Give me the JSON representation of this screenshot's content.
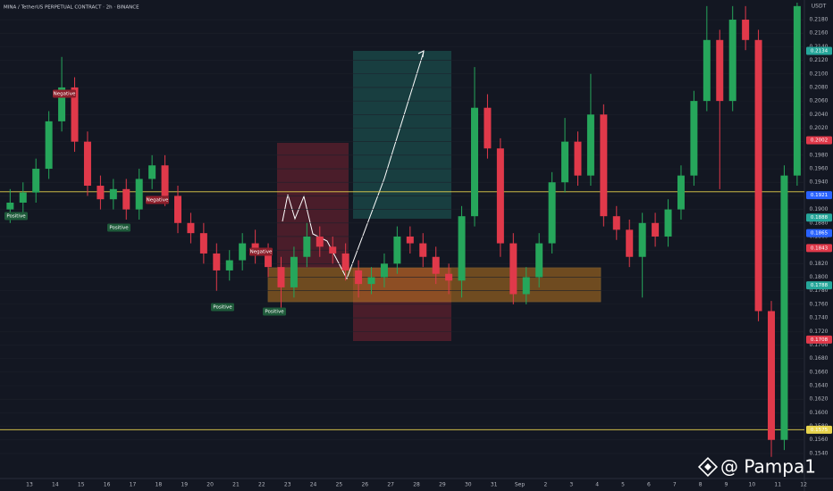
{
  "chart_data": {
    "type": "candlestick",
    "title": "MINA / TetherUS PERPETUAL CONTRACT · 2h · BINANCE",
    "currency": "USDT",
    "watermark": "@ Pampa1",
    "categories": [
      "13",
      "14",
      "15",
      "16",
      "17",
      "18",
      "19",
      "20",
      "21",
      "22",
      "23",
      "24",
      "25",
      "26",
      "27",
      "28",
      "29",
      "30",
      "31",
      "Sep",
      "2",
      "3",
      "4",
      "5",
      "6",
      "7",
      "8",
      "9",
      "10",
      "11",
      "12"
    ],
    "up_color": "#26a65b",
    "down_color": "#e0394a",
    "open": [
      0.19,
      0.191,
      0.1925,
      0.196,
      0.203,
      0.208,
      0.2,
      0.1935,
      0.1915,
      0.193,
      0.19,
      0.1945,
      0.1965,
      0.192,
      0.188,
      0.1865,
      0.1835,
      0.181,
      0.1825,
      0.185,
      0.1835,
      0.1815,
      0.1785,
      0.183,
      0.186,
      0.1845,
      0.1835,
      0.181,
      0.179,
      0.18,
      0.182,
      0.186,
      0.185,
      0.183,
      0.1805,
      0.1795,
      0.189,
      0.205,
      0.199,
      0.185,
      0.1775,
      0.18,
      0.185,
      0.194,
      0.2,
      0.195,
      0.204,
      0.189,
      0.187,
      0.183,
      0.188,
      0.186,
      0.19,
      0.195,
      0.206,
      0.215,
      0.206,
      0.218,
      0.215,
      0.175,
      0.156,
      0.195
    ],
    "high": [
      0.193,
      0.194,
      0.1975,
      0.2045,
      0.2125,
      0.2095,
      0.2015,
      0.195,
      0.1945,
      0.1945,
      0.196,
      0.198,
      0.198,
      0.1935,
      0.1895,
      0.188,
      0.185,
      0.184,
      0.1865,
      0.187,
      0.185,
      0.183,
      0.1845,
      0.188,
      0.1875,
      0.186,
      0.185,
      0.1825,
      0.1815,
      0.1835,
      0.1875,
      0.1875,
      0.1865,
      0.1845,
      0.182,
      0.1905,
      0.211,
      0.207,
      0.2005,
      0.1865,
      0.1815,
      0.1865,
      0.1955,
      0.2035,
      0.2015,
      0.21,
      0.2055,
      0.1905,
      0.1885,
      0.1895,
      0.1895,
      0.1915,
      0.1965,
      0.2075,
      0.22,
      0.2165,
      0.22,
      0.22,
      0.2165,
      0.1765,
      0.1965,
      0.2205
    ],
    "low": [
      0.188,
      0.1895,
      0.191,
      0.1945,
      0.2015,
      0.1985,
      0.192,
      0.19,
      0.19,
      0.1885,
      0.1885,
      0.193,
      0.1905,
      0.1865,
      0.185,
      0.182,
      0.178,
      0.1795,
      0.181,
      0.182,
      0.18,
      0.175,
      0.177,
      0.1815,
      0.183,
      0.182,
      0.1795,
      0.177,
      0.1775,
      0.1785,
      0.1805,
      0.1835,
      0.1815,
      0.179,
      0.1775,
      0.177,
      0.1875,
      0.1975,
      0.183,
      0.176,
      0.176,
      0.1785,
      0.1835,
      0.1925,
      0.1935,
      0.1935,
      0.1875,
      0.1855,
      0.1815,
      0.177,
      0.1845,
      0.1845,
      0.1885,
      0.1935,
      0.2045,
      0.193,
      0.2045,
      0.2135,
      0.1735,
      0.1535,
      0.1545,
      0.1935
    ],
    "close": [
      0.191,
      0.1925,
      0.196,
      0.203,
      0.208,
      0.2,
      0.1935,
      0.1915,
      0.193,
      0.19,
      0.1945,
      0.1965,
      0.192,
      0.188,
      0.1865,
      0.1835,
      0.181,
      0.1825,
      0.185,
      0.1835,
      0.1815,
      0.1785,
      0.183,
      0.186,
      0.1845,
      0.1835,
      0.181,
      0.179,
      0.18,
      0.182,
      0.186,
      0.185,
      0.183,
      0.1805,
      0.1795,
      0.189,
      0.205,
      0.199,
      0.185,
      0.1775,
      0.18,
      0.185,
      0.194,
      0.2,
      0.195,
      0.204,
      0.189,
      0.187,
      0.183,
      0.188,
      0.186,
      0.19,
      0.195,
      0.206,
      0.215,
      0.206,
      0.218,
      0.215,
      0.175,
      0.156,
      0.195,
      0.22
    ],
    "ylim": [
      0.1503,
      0.2209
    ],
    "yticks": [
      {
        "value": 0.218,
        "label": "0.2180"
      },
      {
        "value": 0.216,
        "label": "0.2160"
      },
      {
        "value": 0.214,
        "label": "0.2140"
      },
      {
        "value": 0.212,
        "label": "0.2120"
      },
      {
        "value": 0.21,
        "label": "0.2100"
      },
      {
        "value": 0.208,
        "label": "0.2080"
      },
      {
        "value": 0.206,
        "label": "0.2060"
      },
      {
        "value": 0.204,
        "label": "0.2040"
      },
      {
        "value": 0.202,
        "label": "0.2020"
      },
      {
        "value": 0.2,
        "label": "0.2000"
      },
      {
        "value": 0.198,
        "label": "0.1980"
      },
      {
        "value": 0.196,
        "label": "0.1960"
      },
      {
        "value": 0.194,
        "label": "0.1940"
      },
      {
        "value": 0.192,
        "label": "0.1920"
      },
      {
        "value": 0.19,
        "label": "0.1900"
      },
      {
        "value": 0.188,
        "label": "0.1880"
      },
      {
        "value": 0.186,
        "label": "0.1860"
      },
      {
        "value": 0.184,
        "label": "0.1840"
      },
      {
        "value": 0.182,
        "label": "0.1820"
      },
      {
        "value": 0.18,
        "label": "0.1800"
      },
      {
        "value": 0.178,
        "label": "0.1780"
      },
      {
        "value": 0.176,
        "label": "0.1760"
      },
      {
        "value": 0.174,
        "label": "0.1740"
      },
      {
        "value": 0.172,
        "label": "0.1720"
      },
      {
        "value": 0.17,
        "label": "0.1700"
      },
      {
        "value": 0.168,
        "label": "0.1680"
      },
      {
        "value": 0.166,
        "label": "0.1660"
      },
      {
        "value": 0.164,
        "label": "0.1640"
      },
      {
        "value": 0.162,
        "label": "0.1620"
      },
      {
        "value": 0.16,
        "label": "0.1600"
      },
      {
        "value": 0.158,
        "label": "0.1580"
      },
      {
        "value": 0.156,
        "label": "0.1560"
      },
      {
        "value": 0.154,
        "label": "0.1540"
      }
    ],
    "grid": true,
    "hlines": [
      {
        "value": 0.1926,
        "color": "#e8d44d"
      },
      {
        "value": 0.1575,
        "color": "#e8d44d"
      }
    ],
    "price_tags": [
      {
        "value": 0.2134,
        "color": "#26a69a"
      },
      {
        "value": 0.2002,
        "color": "#e0394a"
      },
      {
        "value": 0.1921,
        "color": "#2962ff"
      },
      {
        "value": 0.1888,
        "color": "#26a69a"
      },
      {
        "value": 0.1865,
        "color": "#2962ff"
      },
      {
        "value": 0.1843,
        "color": "#e0394a"
      },
      {
        "value": 0.1788,
        "color": "#26a69a"
      },
      {
        "value": 0.1708,
        "color": "#e0394a"
      },
      {
        "value": 0.1575,
        "color": "#e8d44d"
      }
    ],
    "annotations": [
      "Negative",
      "Negative",
      "Negative",
      "Positive",
      "Positive",
      "Positive",
      "Positive"
    ]
  }
}
